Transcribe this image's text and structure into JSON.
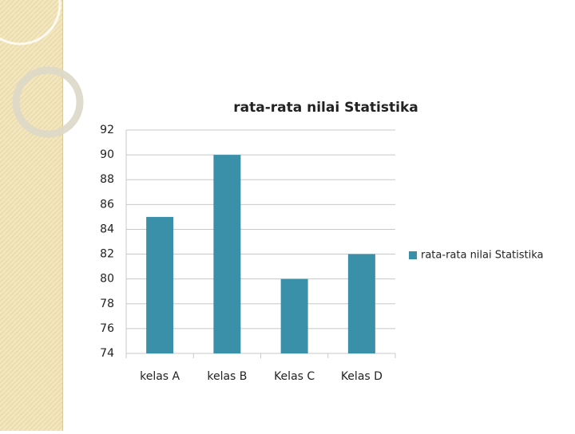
{
  "chart_data": {
    "type": "bar",
    "title": "rata-rata nilai Statistika",
    "categories": [
      "kelas A",
      "kelas B",
      "Kelas C",
      "Kelas D"
    ],
    "series": [
      {
        "name": "rata-rata nilai Statistika",
        "color": "#3a90a9",
        "values": [
          85,
          90,
          80,
          82
        ]
      }
    ],
    "ylim": [
      74,
      92
    ],
    "yticks": [
      74,
      76,
      78,
      80,
      82,
      84,
      86,
      88,
      90,
      92
    ],
    "grid": true,
    "legend": "right"
  }
}
